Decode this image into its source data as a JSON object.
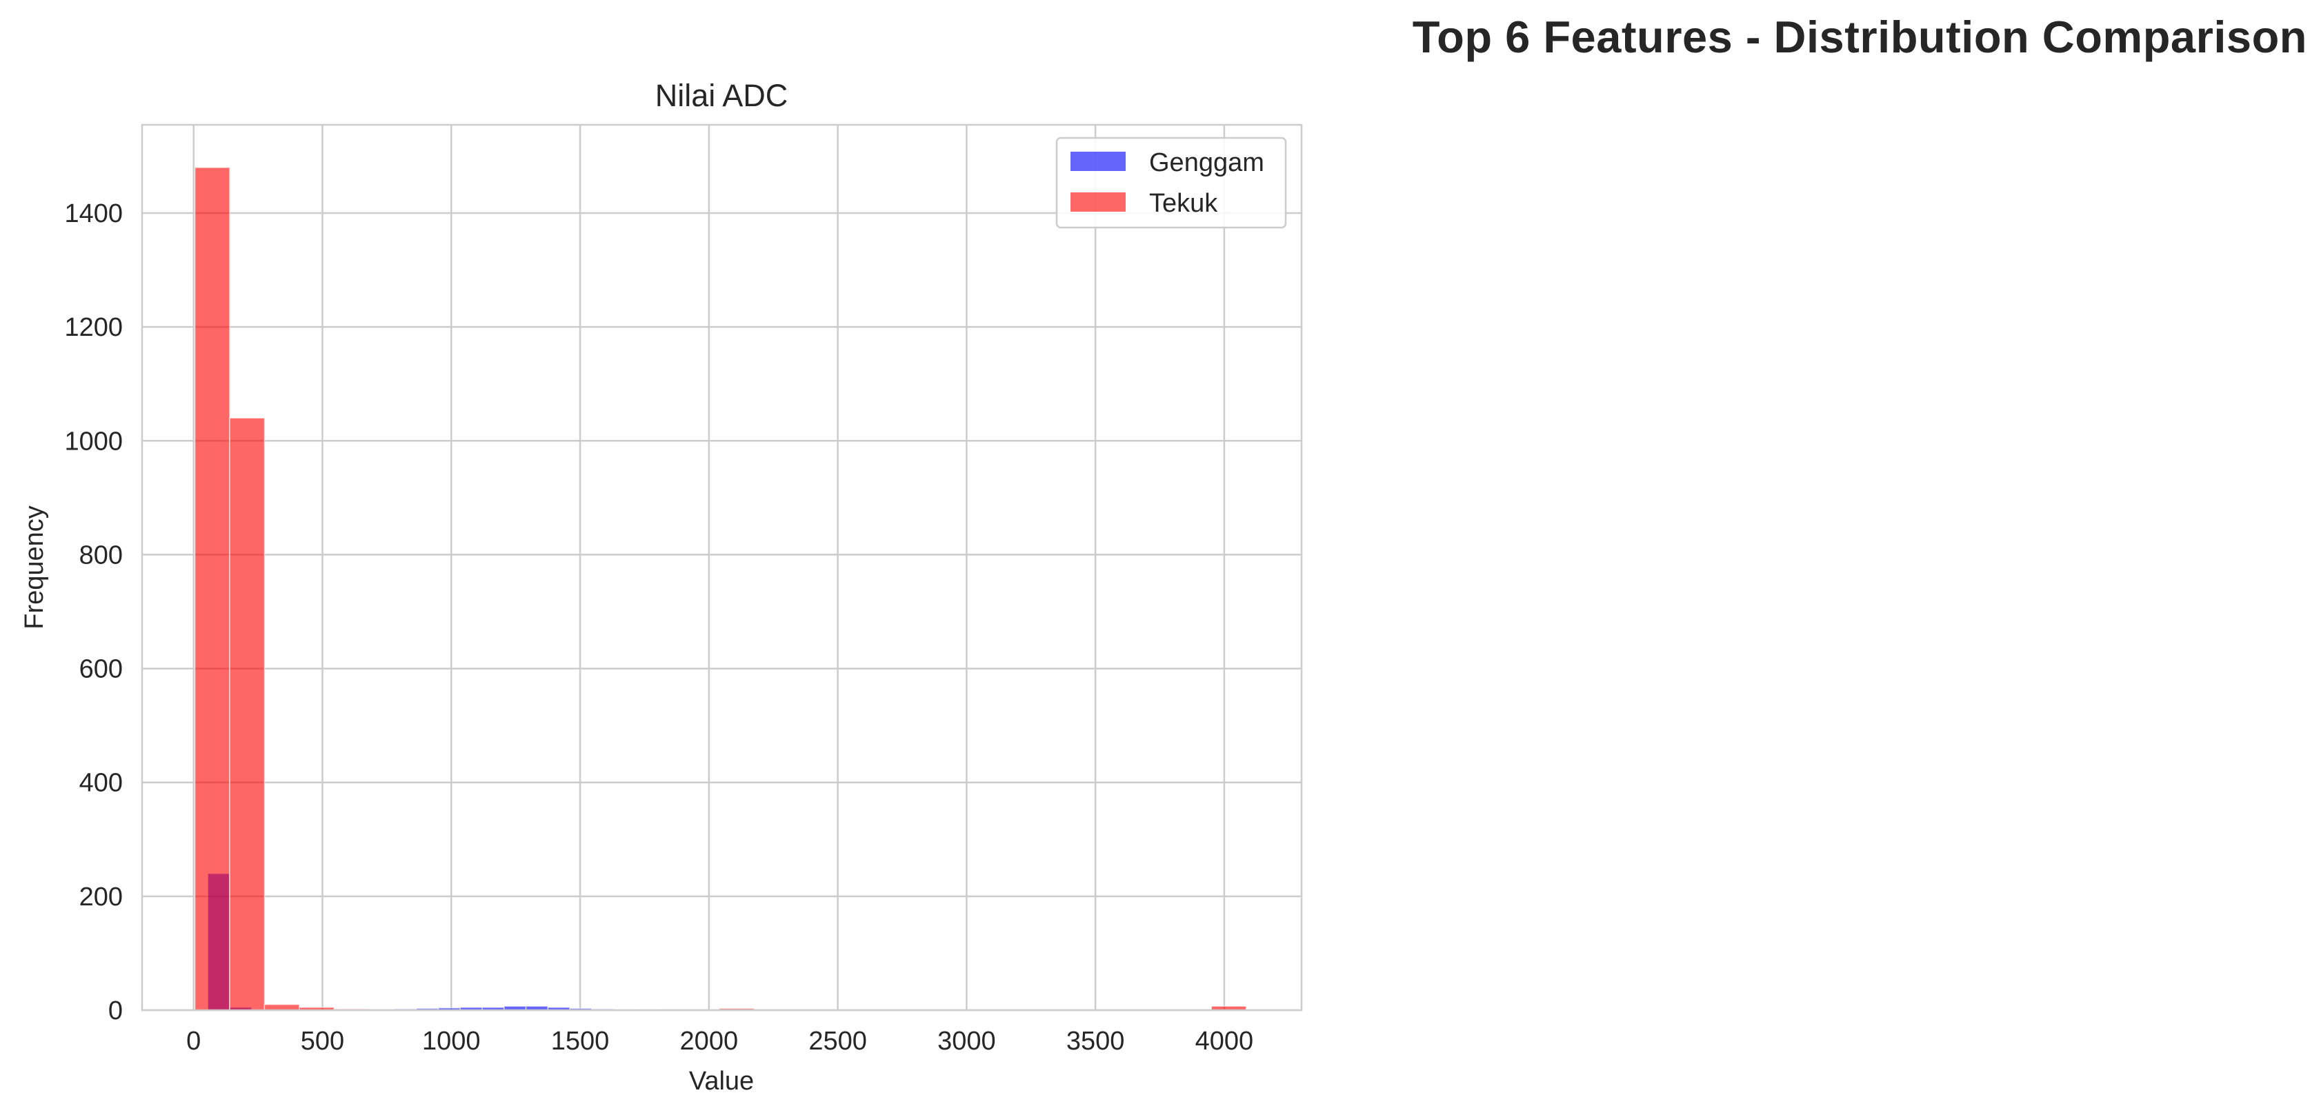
{
  "figure": {
    "title": "Top 6 Features - Distribution Comparison"
  },
  "chart_data": {
    "type": "bar",
    "subtype": "overlaid-histogram",
    "title": "Nilai ADC",
    "xlabel": "Value",
    "ylabel": "Frequency",
    "xlim": [
      -200,
      4300
    ],
    "ylim": [
      0,
      1555
    ],
    "xticks": [
      0,
      500,
      1000,
      1500,
      2000,
      2500,
      3000,
      3500,
      4000
    ],
    "yticks": [
      0,
      200,
      400,
      600,
      800,
      1000,
      1200,
      1400
    ],
    "grid": true,
    "legend_position": "top-right",
    "series": [
      {
        "name": "Genggam",
        "color": "#0000ff",
        "opacity": 0.6,
        "bins": [
          {
            "x0": 55,
            "x1": 140,
            "count": 240
          },
          {
            "x0": 140,
            "x1": 225,
            "count": 5
          },
          {
            "x0": 780,
            "x1": 865,
            "count": 2
          },
          {
            "x0": 865,
            "x1": 950,
            "count": 3
          },
          {
            "x0": 950,
            "x1": 1035,
            "count": 4
          },
          {
            "x0": 1035,
            "x1": 1120,
            "count": 5
          },
          {
            "x0": 1120,
            "x1": 1205,
            "count": 5
          },
          {
            "x0": 1205,
            "x1": 1290,
            "count": 7
          },
          {
            "x0": 1290,
            "x1": 1375,
            "count": 7
          },
          {
            "x0": 1375,
            "x1": 1460,
            "count": 5
          },
          {
            "x0": 1460,
            "x1": 1545,
            "count": 3
          },
          {
            "x0": 1545,
            "x1": 1630,
            "count": 2
          },
          {
            "x0": 1630,
            "x1": 1715,
            "count": 1
          },
          {
            "x0": 1715,
            "x1": 1800,
            "count": 1
          }
        ]
      },
      {
        "name": "Tekuk",
        "color": "#ff0000",
        "opacity": 0.6,
        "bins": [
          {
            "x0": 5,
            "x1": 140,
            "count": 1480
          },
          {
            "x0": 140,
            "x1": 275,
            "count": 1040
          },
          {
            "x0": 275,
            "x1": 410,
            "count": 10
          },
          {
            "x0": 410,
            "x1": 545,
            "count": 5
          },
          {
            "x0": 545,
            "x1": 680,
            "count": 2
          },
          {
            "x0": 2040,
            "x1": 2175,
            "count": 3
          },
          {
            "x0": 3950,
            "x1": 4085,
            "count": 7
          }
        ]
      }
    ]
  }
}
